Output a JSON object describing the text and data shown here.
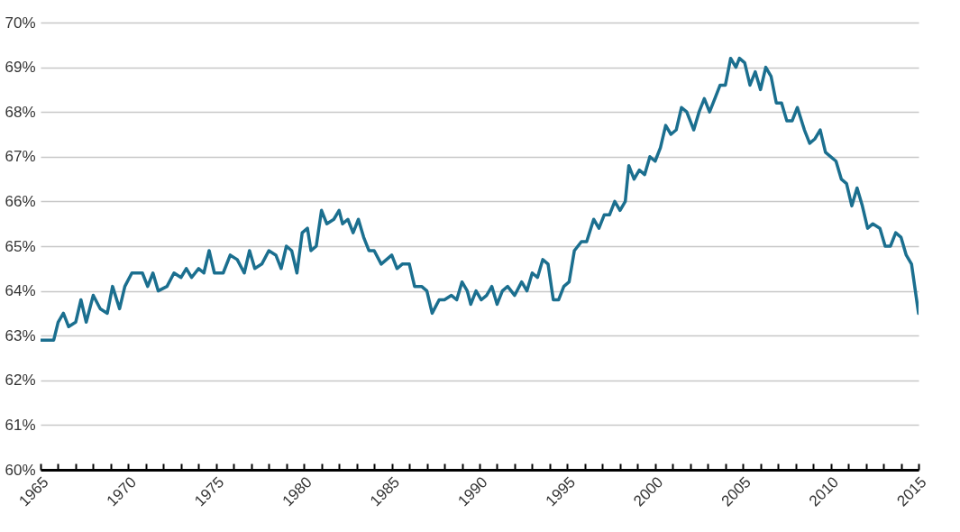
{
  "chart_data": {
    "type": "line",
    "grid": "y",
    "line_style": "solid",
    "marker": "none",
    "xlim": [
      1965,
      2015
    ],
    "xticks": [
      {
        "value": 1965,
        "label": "1965"
      },
      {
        "value": 1966,
        "label": null
      },
      {
        "value": 1967,
        "label": null
      },
      {
        "value": 1968,
        "label": null
      },
      {
        "value": 1969,
        "label": null
      },
      {
        "value": 1970,
        "label": "1970"
      },
      {
        "value": 1971,
        "label": null
      },
      {
        "value": 1972,
        "label": null
      },
      {
        "value": 1973,
        "label": null
      },
      {
        "value": 1974,
        "label": null
      },
      {
        "value": 1975,
        "label": "1975"
      },
      {
        "value": 1976,
        "label": null
      },
      {
        "value": 1977,
        "label": null
      },
      {
        "value": 1978,
        "label": null
      },
      {
        "value": 1979,
        "label": null
      },
      {
        "value": 1980,
        "label": "1980"
      },
      {
        "value": 1981,
        "label": null
      },
      {
        "value": 1982,
        "label": null
      },
      {
        "value": 1983,
        "label": null
      },
      {
        "value": 1984,
        "label": null
      },
      {
        "value": 1985,
        "label": "1985"
      },
      {
        "value": 1986,
        "label": null
      },
      {
        "value": 1987,
        "label": null
      },
      {
        "value": 1988,
        "label": null
      },
      {
        "value": 1989,
        "label": null
      },
      {
        "value": 1990,
        "label": "1990"
      },
      {
        "value": 1991,
        "label": null
      },
      {
        "value": 1992,
        "label": null
      },
      {
        "value": 1993,
        "label": null
      },
      {
        "value": 1994,
        "label": null
      },
      {
        "value": 1995,
        "label": "1995"
      },
      {
        "value": 1996,
        "label": null
      },
      {
        "value": 1997,
        "label": null
      },
      {
        "value": 1998,
        "label": null
      },
      {
        "value": 1999,
        "label": null
      },
      {
        "value": 2000,
        "label": "2000"
      },
      {
        "value": 2001,
        "label": null
      },
      {
        "value": 2002,
        "label": null
      },
      {
        "value": 2003,
        "label": null
      },
      {
        "value": 2004,
        "label": null
      },
      {
        "value": 2005,
        "label": "2005"
      },
      {
        "value": 2006,
        "label": null
      },
      {
        "value": 2007,
        "label": null
      },
      {
        "value": 2008,
        "label": null
      },
      {
        "value": 2009,
        "label": null
      },
      {
        "value": 2010,
        "label": "2010"
      },
      {
        "value": 2011,
        "label": null
      },
      {
        "value": 2012,
        "label": null
      },
      {
        "value": 2013,
        "label": null
      },
      {
        "value": 2014,
        "label": null
      },
      {
        "value": 2015,
        "label": "2015"
      }
    ],
    "ylim": [
      60,
      70
    ],
    "yticks": [
      {
        "value": 60,
        "label": "60%"
      },
      {
        "value": 61,
        "label": "61%"
      },
      {
        "value": 62,
        "label": "62%"
      },
      {
        "value": 63,
        "label": "63%"
      },
      {
        "value": 64,
        "label": "64%"
      },
      {
        "value": 65,
        "label": "65%"
      },
      {
        "value": 66,
        "label": "66%"
      },
      {
        "value": 67,
        "label": "67%"
      },
      {
        "value": 68,
        "label": "68%"
      },
      {
        "value": 69,
        "label": "69%"
      },
      {
        "value": 70,
        "label": "70%"
      }
    ],
    "x": [
      1965.0,
      1965.75,
      1966.0,
      1966.3,
      1966.6,
      1967.0,
      1967.3,
      1967.6,
      1968.0,
      1968.4,
      1968.8,
      1969.1,
      1969.5,
      1969.8,
      1970.2,
      1970.8,
      1971.1,
      1971.4,
      1971.7,
      1972.2,
      1972.6,
      1973.0,
      1973.3,
      1973.6,
      1974.0,
      1974.3,
      1974.6,
      1974.9,
      1975.4,
      1975.8,
      1976.2,
      1976.6,
      1976.9,
      1977.2,
      1977.6,
      1978.0,
      1978.4,
      1978.7,
      1979.0,
      1979.3,
      1979.6,
      1979.9,
      1980.2,
      1980.4,
      1980.7,
      1981.0,
      1981.3,
      1981.7,
      1982.0,
      1982.2,
      1982.5,
      1982.8,
      1983.1,
      1983.4,
      1983.7,
      1984.0,
      1984.4,
      1984.7,
      1985.0,
      1985.3,
      1985.6,
      1986.0,
      1986.3,
      1986.7,
      1987.0,
      1987.3,
      1987.7,
      1988.0,
      1988.4,
      1988.7,
      1989.0,
      1989.3,
      1989.5,
      1989.8,
      1990.1,
      1990.4,
      1990.7,
      1991.0,
      1991.3,
      1991.6,
      1992.0,
      1992.4,
      1992.7,
      1993.0,
      1993.3,
      1993.6,
      1993.9,
      1994.2,
      1994.5,
      1994.8,
      1995.1,
      1995.4,
      1995.8,
      1996.1,
      1996.5,
      1996.8,
      1997.1,
      1997.4,
      1997.7,
      1998.0,
      1998.3,
      1998.5,
      1998.8,
      1999.1,
      1999.4,
      1999.7,
      2000.0,
      2000.3,
      2000.6,
      2000.9,
      2001.2,
      2001.5,
      2001.8,
      2002.2,
      2002.5,
      2002.8,
      2003.1,
      2003.4,
      2003.7,
      2004.0,
      2004.3,
      2004.6,
      2004.8,
      2005.1,
      2005.4,
      2005.7,
      2006.0,
      2006.3,
      2006.6,
      2006.9,
      2007.2,
      2007.5,
      2007.8,
      2008.1,
      2008.5,
      2008.8,
      2009.1,
      2009.4,
      2009.7,
      2010.0,
      2010.3,
      2010.6,
      2010.9,
      2011.2,
      2011.5,
      2011.8,
      2012.1,
      2012.4,
      2012.8,
      2013.1,
      2013.4,
      2013.7,
      2014.0,
      2014.3,
      2014.6,
      2015.0
    ],
    "series": [
      {
        "color": "#1b6f8f",
        "values": [
          62.9,
          62.9,
          63.3,
          63.5,
          63.2,
          63.3,
          63.8,
          63.3,
          63.9,
          63.6,
          63.5,
          64.1,
          63.6,
          64.1,
          64.4,
          64.4,
          64.1,
          64.4,
          64.0,
          64.1,
          64.4,
          64.3,
          64.5,
          64.3,
          64.5,
          64.4,
          64.9,
          64.4,
          64.4,
          64.8,
          64.7,
          64.4,
          64.9,
          64.5,
          64.6,
          64.9,
          64.8,
          64.5,
          65.0,
          64.9,
          64.4,
          65.3,
          65.4,
          64.9,
          65.0,
          65.8,
          65.5,
          65.6,
          65.8,
          65.5,
          65.6,
          65.3,
          65.6,
          65.2,
          64.9,
          64.9,
          64.6,
          64.7,
          64.8,
          64.5,
          64.6,
          64.6,
          64.1,
          64.1,
          64.0,
          63.5,
          63.8,
          63.8,
          63.9,
          63.8,
          64.2,
          64.0,
          63.7,
          64.0,
          63.8,
          63.9,
          64.1,
          63.7,
          64.0,
          64.1,
          63.9,
          64.2,
          64.0,
          64.4,
          64.3,
          64.7,
          64.6,
          63.8,
          63.8,
          64.1,
          64.2,
          64.9,
          65.1,
          65.1,
          65.6,
          65.4,
          65.7,
          65.7,
          66.0,
          65.8,
          66.0,
          66.8,
          66.5,
          66.7,
          66.6,
          67.0,
          66.9,
          67.2,
          67.7,
          67.5,
          67.6,
          68.1,
          68.0,
          67.6,
          68.0,
          68.3,
          68.0,
          68.3,
          68.6,
          68.6,
          69.2,
          69.0,
          69.2,
          69.1,
          68.6,
          68.9,
          68.5,
          69.0,
          68.8,
          68.2,
          68.2,
          67.8,
          67.8,
          68.1,
          67.6,
          67.3,
          67.4,
          67.6,
          67.1,
          67.0,
          66.9,
          66.5,
          66.4,
          65.9,
          66.3,
          65.9,
          65.4,
          65.5,
          65.4,
          65.0,
          65.0,
          65.3,
          65.2,
          64.8,
          64.6,
          63.5
        ]
      }
    ]
  }
}
